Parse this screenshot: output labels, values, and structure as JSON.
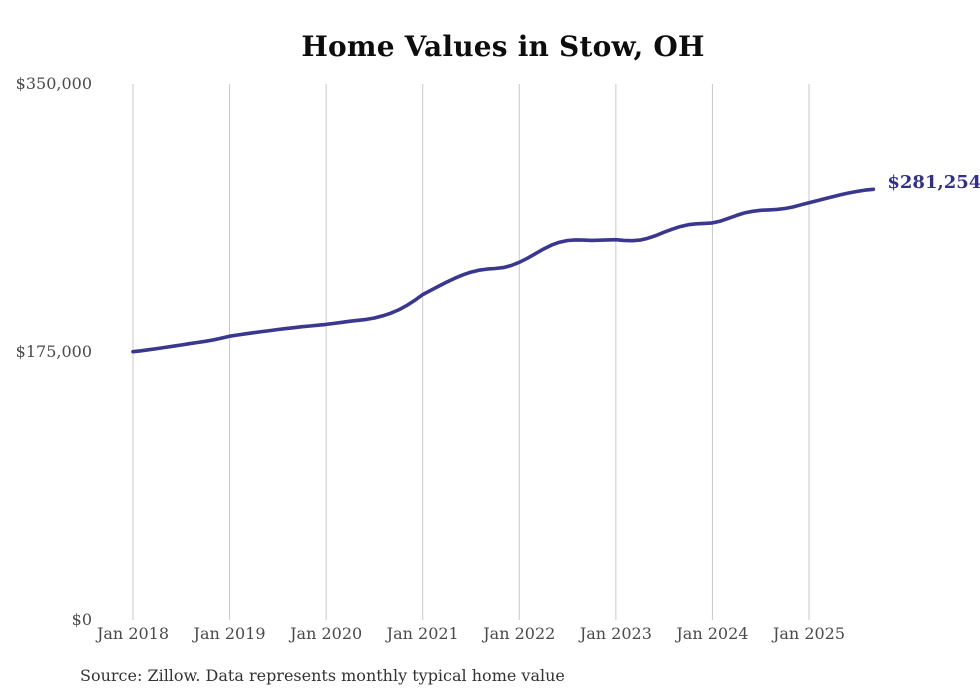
{
  "title": "Home Values in Stow, OH",
  "source_note": "Source: Zillow. Data represents monthly typical home value",
  "chart_data": {
    "type": "line",
    "title": "Home Values in Stow, OH",
    "series_name": "Monthly typical home value",
    "xlabel": "",
    "ylabel": "",
    "ylim": [
      0,
      350000
    ],
    "grid": "vertical-only",
    "legend": "none",
    "end_label": "$281,254",
    "end_value": 281254,
    "y_ticks": [
      {
        "label": "$350,000",
        "value": 350000
      },
      {
        "label": "$175,000",
        "value": 175000
      },
      {
        "label": "$0",
        "value": 0
      }
    ],
    "x_tick_labels": [
      "Jan 2018",
      "Jan 2019",
      "Jan 2020",
      "Jan 2021",
      "Jan 2022",
      "Jan 2023",
      "Jan 2024",
      "Jan 2025"
    ],
    "x": [
      "2018-01",
      "2018-02",
      "2018-03",
      "2018-04",
      "2018-05",
      "2018-06",
      "2018-07",
      "2018-08",
      "2018-09",
      "2018-10",
      "2018-11",
      "2018-12",
      "2019-01",
      "2019-02",
      "2019-03",
      "2019-04",
      "2019-05",
      "2019-06",
      "2019-07",
      "2019-08",
      "2019-09",
      "2019-10",
      "2019-11",
      "2019-12",
      "2020-01",
      "2020-02",
      "2020-03",
      "2020-04",
      "2020-05",
      "2020-06",
      "2020-07",
      "2020-08",
      "2020-09",
      "2020-10",
      "2020-11",
      "2020-12",
      "2021-01",
      "2021-02",
      "2021-03",
      "2021-04",
      "2021-05",
      "2021-06",
      "2021-07",
      "2021-08",
      "2021-09",
      "2021-10",
      "2021-11",
      "2021-12",
      "2022-01",
      "2022-02",
      "2022-03",
      "2022-04",
      "2022-05",
      "2022-06",
      "2022-07",
      "2022-08",
      "2022-09",
      "2022-10",
      "2022-11",
      "2022-12",
      "2023-01",
      "2023-02",
      "2023-03",
      "2023-04",
      "2023-05",
      "2023-06",
      "2023-07",
      "2023-08",
      "2023-09",
      "2023-10",
      "2023-11",
      "2023-12",
      "2024-01",
      "2024-02",
      "2024-03",
      "2024-04",
      "2024-05",
      "2024-06",
      "2024-07",
      "2024-08",
      "2024-09",
      "2024-10",
      "2024-11",
      "2024-12",
      "2025-01",
      "2025-02",
      "2025-03",
      "2025-04",
      "2025-05",
      "2025-06",
      "2025-07",
      "2025-08",
      "2025-09"
    ],
    "values": [
      175200,
      175800,
      176500,
      177200,
      178000,
      178800,
      179600,
      180400,
      181200,
      182000,
      182900,
      184100,
      185300,
      186100,
      186900,
      187600,
      188300,
      189000,
      189700,
      190300,
      190900,
      191500,
      192000,
      192500,
      193000,
      193700,
      194400,
      195100,
      195700,
      196300,
      197200,
      198600,
      200300,
      202500,
      205300,
      208700,
      212500,
      215300,
      218000,
      220700,
      223200,
      225400,
      227200,
      228400,
      229100,
      229500,
      230100,
      231500,
      233600,
      236200,
      239200,
      242200,
      244800,
      246700,
      247800,
      248200,
      248100,
      247900,
      248000,
      248200,
      248300,
      247900,
      247700,
      248100,
      249300,
      251100,
      253200,
      255200,
      256900,
      258100,
      258700,
      259000,
      259300,
      260500,
      262300,
      264200,
      265800,
      266900,
      267500,
      267800,
      268100,
      268700,
      269700,
      271100,
      272500,
      273800,
      275200,
      276500,
      277800,
      278900,
      279900,
      280700,
      281254
    ],
    "colors": {
      "line": "#3a378f",
      "end_label": "#33308c",
      "grid": "#c9c9c9",
      "axis_text": "#4a4a4a",
      "title_text": "#0d0d0d",
      "source_text": "#333333"
    }
  }
}
